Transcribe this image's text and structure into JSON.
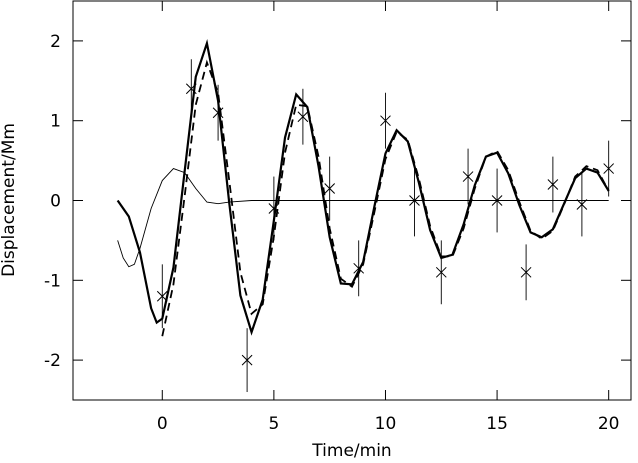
{
  "chart_data": {
    "type": "line",
    "xlabel": "Time/min",
    "ylabel": "Displacement/Mm",
    "xlim": [
      -4,
      21
    ],
    "ylim": [
      -2.5,
      2.5
    ],
    "xticks": [
      0,
      5,
      10,
      15,
      20
    ],
    "yticks": [
      -2,
      -1,
      0,
      1,
      2
    ],
    "color": "#000000",
    "series": [
      {
        "type": "line",
        "style": "thick",
        "x": [
          -2,
          -1.5,
          -1,
          -0.5,
          -0.25,
          0,
          0.5,
          1,
          1.5,
          2,
          2.5,
          3,
          3.5,
          4,
          4.5,
          5,
          5.5,
          6,
          6.5,
          7,
          7.5,
          8,
          8.5,
          9,
          9.5,
          10,
          10.5,
          11,
          11.5,
          12,
          12.5,
          13,
          13.5,
          14,
          14.5,
          15,
          15.5,
          16,
          16.5,
          17,
          17.5,
          18,
          18.5,
          19,
          19.5,
          20
        ],
        "values": [
          0,
          -0.2,
          -0.65,
          -1.35,
          -1.53,
          -1.48,
          -0.84,
          0.36,
          1.55,
          1.97,
          1.25,
          -0.03,
          -1.19,
          -1.65,
          -1.24,
          -0.25,
          0.79,
          1.33,
          1.17,
          0.43,
          -0.46,
          -1.04,
          -1.05,
          -0.77,
          -0.08,
          0.59,
          0.88,
          0.74,
          0.22,
          -0.37,
          -0.72,
          -0.68,
          -0.3,
          0.19,
          0.55,
          0.6,
          0.34,
          -0.06,
          -0.4,
          -0.46,
          -0.36,
          -0.04,
          0.28,
          0.4,
          0.35,
          0.12
        ]
      },
      {
        "type": "line",
        "style": "dashed",
        "x": [
          0,
          0.5,
          1,
          1.5,
          2,
          2.5,
          3,
          3.5,
          4,
          4.5,
          5,
          5.5,
          6,
          6.5,
          7,
          7.5,
          8,
          8.5,
          9,
          9.5,
          10,
          10.5,
          11,
          11.5,
          12,
          12.5,
          13,
          13.5,
          14,
          14.5,
          15,
          15.5,
          16,
          16.5,
          17,
          17.5,
          18,
          18.5,
          19,
          19.5,
          20
        ],
        "values": [
          -1.7,
          -1.05,
          0.05,
          1.2,
          1.73,
          1.35,
          0.25,
          -0.9,
          -1.42,
          -1.3,
          -0.45,
          0.6,
          1.2,
          1.18,
          0.55,
          -0.35,
          -0.98,
          -1.08,
          -0.8,
          -0.15,
          0.52,
          0.86,
          0.76,
          0.27,
          -0.32,
          -0.7,
          -0.7,
          -0.35,
          0.15,
          0.55,
          0.62,
          0.38,
          -0.02,
          -0.38,
          -0.48,
          -0.38,
          -0.05,
          0.3,
          0.43,
          0.38,
          0.12
        ]
      },
      {
        "type": "line",
        "style": "thin",
        "x": [
          -2,
          -1.75,
          -1.5,
          -1.25,
          -1,
          -0.5,
          0,
          0.5,
          1,
          1.5,
          2,
          2.5,
          3,
          4,
          20
        ],
        "values": [
          -0.5,
          -0.72,
          -0.83,
          -0.8,
          -0.6,
          -0.1,
          0.25,
          0.4,
          0.35,
          0.15,
          -0.02,
          -0.04,
          -0.02,
          0,
          0
        ]
      },
      {
        "type": "scatter",
        "marker": "x",
        "x": [
          0,
          1.3,
          2.5,
          3.8,
          5,
          6.3,
          7.5,
          8.8,
          10,
          11.3,
          12.5,
          13.7,
          15,
          16.3,
          17.5,
          18.8,
          20
        ],
        "values": [
          -1.2,
          1.4,
          1.1,
          -2.0,
          -0.1,
          1.05,
          0.15,
          -0.85,
          1.0,
          0.0,
          -0.9,
          0.3,
          0.0,
          -0.9,
          0.2,
          -0.05,
          0.4
        ],
        "errors": [
          0.4,
          0.37,
          0.35,
          0.4,
          0.4,
          0.35,
          0.4,
          0.35,
          0.35,
          0.45,
          0.4,
          0.35,
          0.4,
          0.35,
          0.35,
          0.4,
          0.35
        ]
      }
    ]
  }
}
